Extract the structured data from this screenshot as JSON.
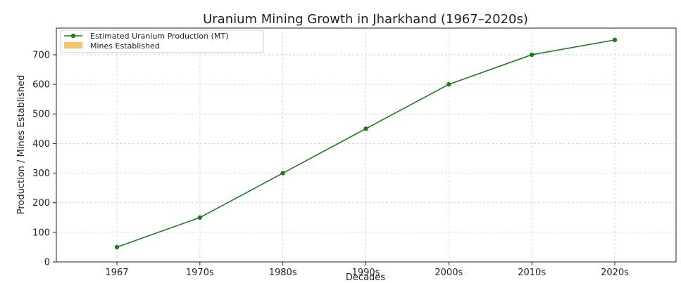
{
  "chart_data": {
    "type": "bar",
    "title": "Uranium Mining Growth in Jharkhand (1967–2020s)",
    "xlabel": "Decades",
    "ylabel": "Production / Mines Established",
    "ylim": [
      0,
      790
    ],
    "y_ticks": [
      "0",
      "100",
      "200",
      "300",
      "400",
      "500",
      "600",
      "700"
    ],
    "categories": [
      "1967",
      "1970s",
      "1980s",
      "1990s",
      "2000s",
      "2010s",
      "2020s"
    ],
    "grid": true,
    "legend_position": "top-left",
    "series": [
      {
        "name": "Estimated Uranium Production (MT)",
        "type": "line",
        "color": "#1a7f1a",
        "marker": "circle",
        "values": [
          50,
          150,
          300,
          450,
          600,
          700,
          750
        ]
      },
      {
        "name": "Mines Established",
        "type": "bar",
        "color": "#f5c76b",
        "values": [
          0,
          0,
          1,
          0,
          1,
          1,
          0
        ]
      }
    ]
  }
}
